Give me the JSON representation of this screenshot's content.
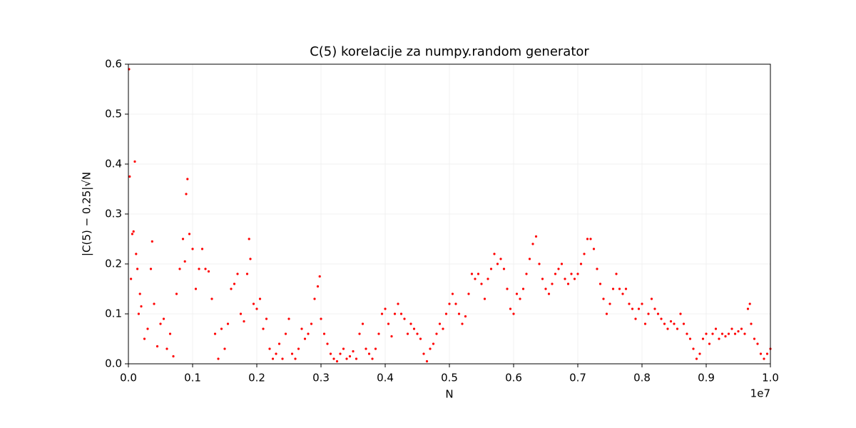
{
  "chart_data": {
    "type": "scatter",
    "title": "C(5) korelacije za numpy.random generator",
    "x_label": "N",
    "y_label": "|C(5) − 0.25|√N",
    "x_offset_label": "1e7",
    "color": "#ff0000",
    "grid": true,
    "xlim": [
      0,
      1.0
    ],
    "ylim": [
      0,
      0.6
    ],
    "xticks": [
      {
        "value": 0,
        "label": "0.0"
      },
      0.1,
      0.2,
      0.3,
      0.4,
      0.5,
      0.6,
      0.7,
      0.8,
      0.9,
      {
        "value": 1,
        "label": "1.0"
      }
    ],
    "yticks": [
      {
        "value": 0,
        "label": "0.0"
      },
      0.1,
      0.2,
      0.3,
      0.4,
      0.5,
      0.6
    ],
    "x": [
      0.001,
      0.002,
      0.004,
      0.006,
      0.008,
      0.01,
      0.012,
      0.014,
      0.016,
      0.018,
      0.02,
      0.025,
      0.03,
      0.035,
      0.037,
      0.04,
      0.045,
      0.05,
      0.055,
      0.06,
      0.065,
      0.07,
      0.075,
      0.08,
      0.085,
      0.088,
      0.09,
      0.092,
      0.095,
      0.1,
      0.105,
      0.11,
      0.115,
      0.12,
      0.125,
      0.13,
      0.135,
      0.14,
      0.145,
      0.15,
      0.155,
      0.16,
      0.165,
      0.17,
      0.175,
      0.18,
      0.185,
      0.188,
      0.19,
      0.195,
      0.2,
      0.205,
      0.21,
      0.215,
      0.22,
      0.225,
      0.23,
      0.235,
      0.24,
      0.245,
      0.25,
      0.255,
      0.26,
      0.265,
      0.27,
      0.275,
      0.28,
      0.285,
      0.29,
      0.295,
      0.298,
      0.3,
      0.305,
      0.31,
      0.315,
      0.32,
      0.325,
      0.33,
      0.335,
      0.34,
      0.345,
      0.35,
      0.355,
      0.36,
      0.365,
      0.37,
      0.375,
      0.38,
      0.385,
      0.39,
      0.395,
      0.4,
      0.405,
      0.41,
      0.415,
      0.42,
      0.425,
      0.43,
      0.435,
      0.44,
      0.445,
      0.45,
      0.455,
      0.46,
      0.465,
      0.47,
      0.475,
      0.48,
      0.485,
      0.49,
      0.495,
      0.5,
      0.505,
      0.51,
      0.515,
      0.52,
      0.525,
      0.53,
      0.535,
      0.54,
      0.545,
      0.55,
      0.555,
      0.56,
      0.565,
      0.57,
      0.575,
      0.58,
      0.585,
      0.59,
      0.595,
      0.6,
      0.605,
      0.61,
      0.615,
      0.62,
      0.625,
      0.63,
      0.635,
      0.64,
      0.645,
      0.65,
      0.655,
      0.66,
      0.665,
      0.67,
      0.675,
      0.68,
      0.685,
      0.69,
      0.695,
      0.7,
      0.705,
      0.71,
      0.715,
      0.72,
      0.725,
      0.73,
      0.735,
      0.74,
      0.745,
      0.75,
      0.755,
      0.76,
      0.765,
      0.77,
      0.775,
      0.78,
      0.785,
      0.79,
      0.795,
      0.8,
      0.805,
      0.81,
      0.815,
      0.82,
      0.825,
      0.83,
      0.835,
      0.84,
      0.845,
      0.85,
      0.855,
      0.86,
      0.865,
      0.87,
      0.875,
      0.88,
      0.885,
      0.89,
      0.895,
      0.9,
      0.905,
      0.91,
      0.915,
      0.92,
      0.925,
      0.93,
      0.935,
      0.94,
      0.945,
      0.95,
      0.955,
      0.96,
      0.965,
      0.968,
      0.97,
      0.975,
      0.98,
      0.985,
      0.99,
      0.995,
      1.0
    ],
    "values": [
      0.59,
      0.375,
      0.17,
      0.26,
      0.265,
      0.405,
      0.22,
      0.19,
      0.1,
      0.14,
      0.115,
      0.05,
      0.07,
      0.19,
      0.245,
      0.12,
      0.035,
      0.08,
      0.09,
      0.03,
      0.06,
      0.015,
      0.14,
      0.19,
      0.25,
      0.205,
      0.34,
      0.37,
      0.26,
      0.23,
      0.15,
      0.19,
      0.23,
      0.19,
      0.185,
      0.13,
      0.06,
      0.01,
      0.07,
      0.03,
      0.08,
      0.15,
      0.16,
      0.18,
      0.1,
      0.085,
      0.18,
      0.25,
      0.21,
      0.12,
      0.11,
      0.13,
      0.07,
      0.09,
      0.03,
      0.01,
      0.02,
      0.04,
      0.01,
      0.06,
      0.09,
      0.02,
      0.01,
      0.03,
      0.07,
      0.05,
      0.06,
      0.08,
      0.13,
      0.155,
      0.175,
      0.09,
      0.06,
      0.04,
      0.02,
      0.01,
      0.005,
      0.02,
      0.03,
      0.01,
      0.015,
      0.025,
      0.01,
      0.06,
      0.08,
      0.03,
      0.02,
      0.01,
      0.03,
      0.06,
      0.1,
      0.11,
      0.08,
      0.055,
      0.1,
      0.12,
      0.1,
      0.09,
      0.06,
      0.08,
      0.07,
      0.06,
      0.05,
      0.02,
      0.005,
      0.03,
      0.04,
      0.06,
      0.08,
      0.07,
      0.1,
      0.12,
      0.14,
      0.12,
      0.1,
      0.08,
      0.095,
      0.14,
      0.18,
      0.17,
      0.18,
      0.16,
      0.13,
      0.17,
      0.19,
      0.22,
      0.2,
      0.21,
      0.19,
      0.15,
      0.11,
      0.1,
      0.14,
      0.13,
      0.15,
      0.18,
      0.21,
      0.24,
      0.255,
      0.2,
      0.17,
      0.15,
      0.14,
      0.16,
      0.18,
      0.19,
      0.2,
      0.17,
      0.16,
      0.18,
      0.17,
      0.18,
      0.2,
      0.22,
      0.25,
      0.25,
      0.23,
      0.19,
      0.16,
      0.13,
      0.1,
      0.12,
      0.15,
      0.18,
      0.15,
      0.14,
      0.15,
      0.12,
      0.11,
      0.09,
      0.11,
      0.12,
      0.08,
      0.1,
      0.13,
      0.11,
      0.1,
      0.09,
      0.08,
      0.07,
      0.085,
      0.08,
      0.07,
      0.1,
      0.08,
      0.06,
      0.05,
      0.03,
      0.01,
      0.02,
      0.05,
      0.06,
      0.04,
      0.06,
      0.07,
      0.05,
      0.06,
      0.055,
      0.06,
      0.07,
      0.06,
      0.065,
      0.07,
      0.06,
      0.11,
      0.12,
      0.08,
      0.05,
      0.04,
      0.02,
      0.01,
      0.02,
      0.03
    ]
  }
}
